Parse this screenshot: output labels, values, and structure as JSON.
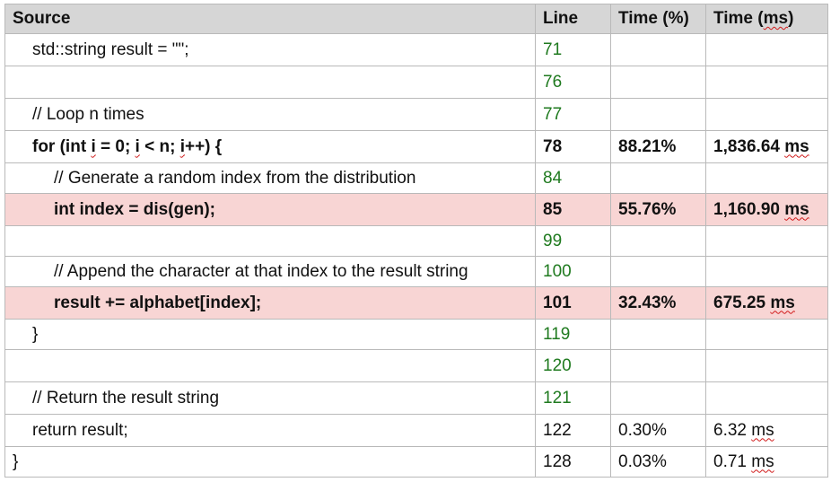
{
  "headers": {
    "source": "Source",
    "line": "Line",
    "time_pct": "Time (%)",
    "time_ms_pre": "Time (",
    "time_ms_unit": "ms",
    "time_ms_post": ")"
  },
  "rows": [
    {
      "source": "std::string result = \"\";",
      "line": "71",
      "pct": "",
      "ms": "",
      "unit": ""
    },
    {
      "source": "",
      "line": "76",
      "pct": "",
      "ms": "",
      "unit": ""
    },
    {
      "source": "// Loop n times",
      "line": "77",
      "pct": "",
      "ms": "",
      "unit": ""
    },
    {
      "src_a": "for (int ",
      "src_b": "i",
      "src_c": " = 0; ",
      "src_d": "i",
      "src_e": " < n; ",
      "src_f": "i",
      "src_g": "++) {",
      "line": "78",
      "pct": "88.21%",
      "ms": "1,836.64",
      "unit": "ms"
    },
    {
      "source": "// Generate a random index from the distribution",
      "line": "84",
      "pct": "",
      "ms": "",
      "unit": ""
    },
    {
      "source": "int index = dis(gen);",
      "line": "85",
      "pct": "55.76%",
      "ms": "1,160.90",
      "unit": "ms"
    },
    {
      "source": "",
      "line": "99",
      "pct": "",
      "ms": "",
      "unit": ""
    },
    {
      "source": "// Append the character at that index to the result string",
      "line": "100",
      "pct": "",
      "ms": "",
      "unit": ""
    },
    {
      "source": "result += alphabet[index];",
      "line": "101",
      "pct": "32.43%",
      "ms": "675.25",
      "unit": "ms"
    },
    {
      "source": "}",
      "line": "119",
      "pct": "",
      "ms": "",
      "unit": ""
    },
    {
      "source": "",
      "line": "120",
      "pct": "",
      "ms": "",
      "unit": ""
    },
    {
      "source": "// Return the result string",
      "line": "121",
      "pct": "",
      "ms": "",
      "unit": ""
    },
    {
      "source": "return result;",
      "line": "122",
      "pct": "0.30%",
      "ms": "6.32",
      "unit": "ms"
    },
    {
      "source": "}",
      "line": "128",
      "pct": "0.03%",
      "ms": "0.71",
      "unit": "ms"
    }
  ],
  "colors": {
    "header_bg": "#d6d6d6",
    "hot_row_bg": "#f8d5d4",
    "line_green": "#1f7a1f",
    "squiggle": "#d11a1a",
    "grid": "#b9b9b9"
  }
}
